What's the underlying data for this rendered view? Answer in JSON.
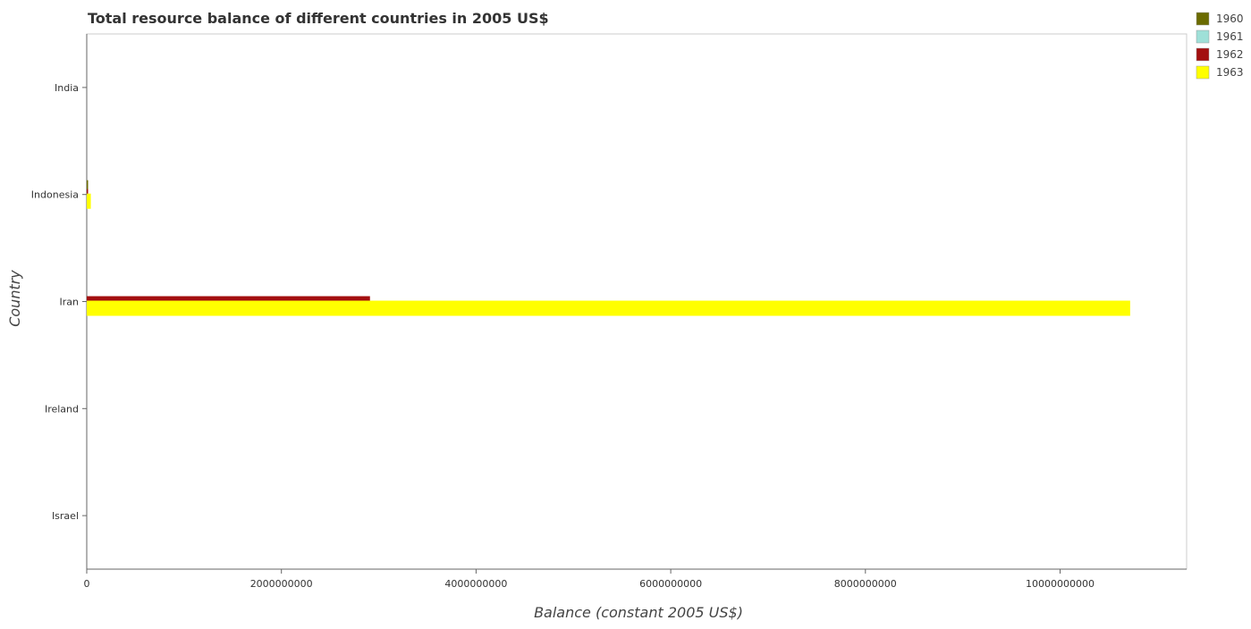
{
  "chart_data": {
    "type": "bar",
    "orientation": "horizontal",
    "title": "Total resource balance of different countries in 2005 US$",
    "xlabel": "Balance (constant 2005 US$)",
    "ylabel": "Country",
    "categories": [
      "India",
      "Indonesia",
      "Iran",
      "Ireland",
      "Israel"
    ],
    "series": [
      {
        "name": "1960",
        "color": "#6b6b00",
        "values": [
          0,
          12000000,
          0,
          0,
          0
        ]
      },
      {
        "name": "1961",
        "color": "#9fe0d8",
        "values": [
          0,
          0,
          0,
          0,
          0
        ]
      },
      {
        "name": "1962",
        "color": "#a30f0f",
        "values": [
          0,
          8000000,
          2910000000,
          0,
          0
        ]
      },
      {
        "name": "1963",
        "color": "#ffff00",
        "values": [
          0,
          42000000,
          10720000000,
          0,
          0
        ]
      }
    ],
    "xlim": [
      0,
      11300000000
    ],
    "xticks": [
      0,
      2000000000,
      4000000000,
      6000000000,
      8000000000,
      10000000000
    ],
    "xtick_labels": [
      "0",
      "2000000000",
      "4000000000",
      "6000000000",
      "8000000000",
      "10000000000"
    ],
    "grid": false,
    "legend_position": "top-right"
  }
}
